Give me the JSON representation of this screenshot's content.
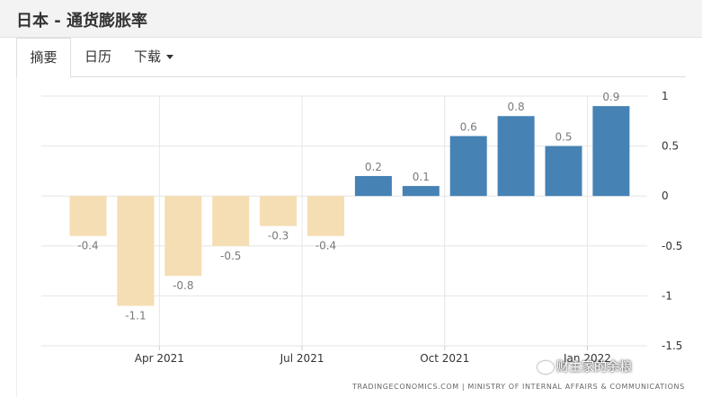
{
  "header": {
    "title": "日本 - 通货膨胀率"
  },
  "tabs": [
    {
      "label": "摘要"
    },
    {
      "label": "日历"
    },
    {
      "label": "下载"
    }
  ],
  "colors": {
    "positive": "#4682b4",
    "negative": "#f5deb3"
  },
  "chart_data": {
    "type": "bar",
    "title": "",
    "xlabel": "",
    "ylabel": "",
    "values": [
      -0.4,
      -1.1,
      -0.8,
      -0.5,
      -0.3,
      -0.4,
      0.2,
      0.1,
      0.6,
      0.8,
      0.5,
      0.9
    ],
    "value_labels": [
      "-0.4",
      "-1.1",
      "-0.8",
      "-0.5",
      "-0.3",
      "-0.4",
      "0.2",
      "0.1",
      "0.6",
      "0.8",
      "0.5",
      "0.9"
    ],
    "ylim": [
      -1.5,
      1
    ],
    "yticks": [
      1,
      0.5,
      0,
      -0.5,
      -1,
      -1.5
    ],
    "ytick_labels": [
      "1",
      "0.5",
      "0",
      "-0.5",
      "-1",
      "-1.5"
    ],
    "xtick_labels": [
      "Apr 2021",
      "Jul 2021",
      "Oct 2021",
      "Jan 2022"
    ],
    "xtick_bar_index": [
      1.5,
      4.5,
      7.5,
      10.5
    ],
    "grid": true
  },
  "source": "TRADINGECONOMICS.COM | MINISTRY OF INTERNAL AFFAIRS & COMMUNICATIONS",
  "watermark": "财主家的余粮"
}
